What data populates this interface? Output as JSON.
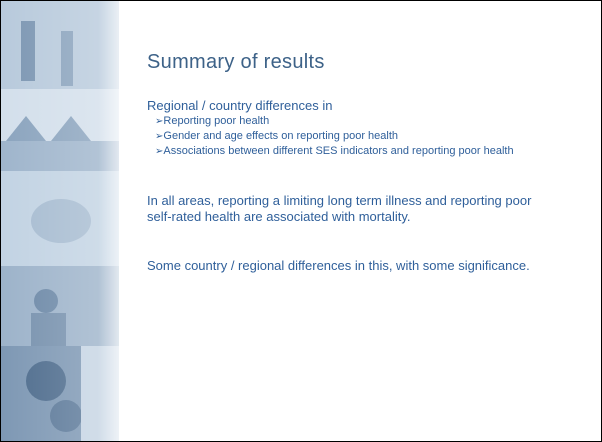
{
  "slide": {
    "title": "Summary of results",
    "intro": "Regional / country differences in",
    "bullets": [
      "Reporting poor health",
      "Gender and age effects on reporting poor health",
      "Associations between different SES indicators and reporting poor health"
    ],
    "paragraphs": [
      "In all areas, reporting a limiting long term illness and reporting poor self-rated health are associated with mortality.",
      "Some country / regional differences in this, with some significance."
    ]
  }
}
